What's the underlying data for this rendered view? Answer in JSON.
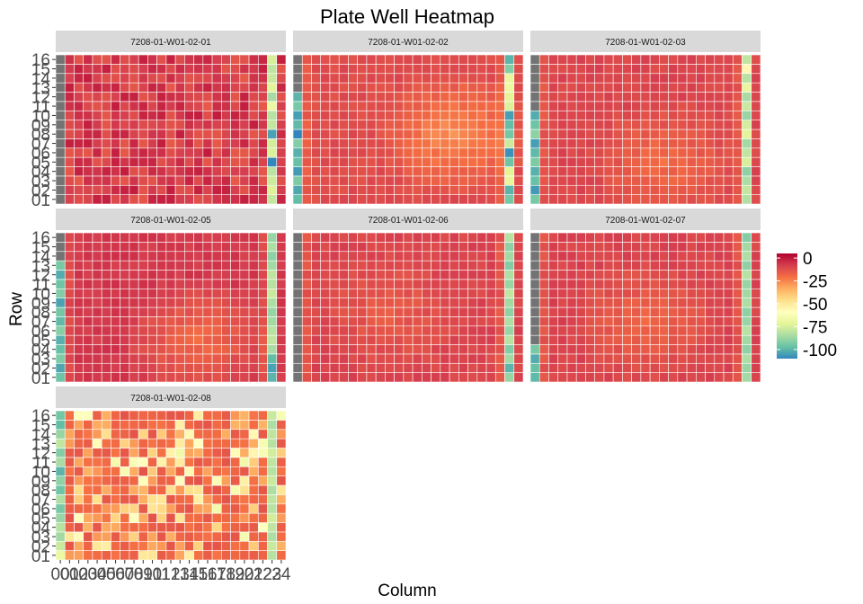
{
  "chart_data": {
    "type": "heatmap",
    "title": "Plate Well Heatmap",
    "xlabel": "Column",
    "ylabel": "Row",
    "x_tick_labels": [
      "00",
      "01",
      "02",
      "03",
      "04",
      "05",
      "06",
      "07",
      "08",
      "09",
      "10",
      "11",
      "12",
      "13",
      "14",
      "15",
      "16",
      "17",
      "18",
      "19",
      "20",
      "21",
      "22",
      "23",
      "24"
    ],
    "y_tick_labels": [
      "16",
      "15",
      "14",
      "13",
      "12",
      "11",
      "10",
      "09",
      "08",
      "07",
      "06",
      "05",
      "04",
      "03",
      "02",
      "01"
    ],
    "columns": [
      0,
      1,
      2,
      3,
      4,
      5,
      6,
      7,
      8,
      9,
      10,
      11,
      12,
      13,
      14,
      15,
      16,
      17,
      18,
      19,
      20,
      21,
      22,
      23,
      24
    ],
    "rows": [
      1,
      2,
      3,
      4,
      5,
      6,
      7,
      8,
      9,
      10,
      11,
      12,
      13,
      14,
      15,
      16
    ],
    "color_scale": {
      "name": "Spectral",
      "range": [
        -110,
        5
      ],
      "legend_ticks": [
        "0",
        "-25",
        "-50",
        "-75",
        "-100"
      ],
      "legend_values": [
        0,
        -25,
        -50,
        -75,
        -100
      ],
      "stops": [
        "#3288bd",
        "#66c2a5",
        "#abdda4",
        "#e6f598",
        "#ffffbf",
        "#fee08b",
        "#fdae61",
        "#f46d43",
        "#d53e4f",
        "#b2002e"
      ],
      "missing_color": "#737373"
    },
    "legend_placement": "right",
    "facet_layout": "3 columns x 3 rows, 7 panels",
    "panels": [
      {
        "label": "7208-01-W01-02-01",
        "col0": [
          -105,
          -92,
          -100,
          -85,
          -98,
          -110,
          -90,
          -88,
          -102,
          -95,
          -108,
          -87,
          -99,
          -93,
          -104,
          -91
        ],
        "col23": [
          -75,
          -80,
          -78,
          -72,
          -85,
          -68,
          -82,
          -79,
          -104,
          -76,
          -74,
          -110,
          -81,
          -77,
          -73,
          -79
        ],
        "grey_rows": [
          16,
          15,
          14,
          13,
          12,
          11,
          10,
          9,
          8,
          7,
          6,
          5,
          4,
          3,
          2,
          1
        ],
        "base": -8,
        "amp": 7,
        "center": [
          6,
          8
        ],
        "pattern": "noisy"
      },
      {
        "label": "7208-01-W01-02-02",
        "col0": [
          -102,
          -96,
          -108,
          -90,
          -100,
          -94,
          -105,
          -99,
          -110,
          -92,
          -101,
          -97,
          -106,
          -93,
          -103,
          -98
        ],
        "col23": [
          -100,
          -92,
          -70,
          -68,
          -72,
          -74,
          -105,
          -98,
          -95,
          -78,
          -108,
          -96,
          -72,
          -70,
          -100,
          -94
        ],
        "grey_rows": [
          16,
          15,
          14,
          13
        ],
        "base": -18,
        "amp": 16,
        "center": [
          17,
          8
        ],
        "pattern": "smooth"
      },
      {
        "label": "7208-01-W01-02-03",
        "col0": [
          -104,
          -98,
          -92,
          -100,
          -95,
          -108,
          -102,
          -96,
          -90,
          -105,
          -99,
          -93,
          -101,
          -97,
          -106,
          -94
        ],
        "col23": [
          -80,
          -55,
          -82,
          -70,
          -85,
          -78,
          -88,
          -76,
          -72,
          -86,
          -80,
          -75,
          -90,
          -84,
          -79,
          -83
        ],
        "grey_rows": [
          16,
          15,
          14,
          13,
          12,
          11
        ],
        "base": -14,
        "amp": 10,
        "center": [
          14,
          5
        ],
        "pattern": "smooth"
      },
      {
        "label": "7208-01-W01-02-05",
        "col0": [
          -100,
          -90,
          -98,
          -94,
          -102,
          -96,
          -92,
          -104,
          -95,
          -99,
          -91,
          -101,
          -97,
          -93,
          -103,
          -96
        ],
        "col23": [
          -88,
          -84,
          -90,
          -86,
          -80,
          -82,
          -78,
          -84,
          -88,
          -86,
          -82,
          -80,
          -85,
          -98,
          -104,
          -100
        ],
        "grey_rows": [
          16,
          15,
          14
        ],
        "base": -12,
        "amp": 13,
        "center": [
          15,
          5
        ],
        "pattern": "smooth"
      },
      {
        "label": "7208-01-W01-02-06",
        "col0": [
          -105,
          -100,
          -96,
          -102,
          -98,
          -94,
          -101,
          -97,
          -103,
          -99,
          -95,
          -100,
          -104,
          -98,
          -96,
          -102
        ],
        "col23": [
          -82,
          -90,
          -86,
          -92,
          -84,
          -88,
          -80,
          -86,
          -90,
          -84,
          -88,
          -82,
          -92,
          -86,
          -100,
          -88
        ],
        "grey_rows": [
          16,
          15,
          14,
          13,
          12,
          11,
          10,
          9,
          8,
          7,
          6,
          5,
          4,
          3,
          2,
          1
        ],
        "base": -12,
        "amp": 6,
        "center": [
          10,
          8
        ],
        "pattern": "smooth"
      },
      {
        "label": "7208-01-W01-02-07",
        "col0": [
          -104,
          -98,
          -100,
          -95,
          -102,
          -97,
          -99,
          -101,
          -96,
          -103,
          -98,
          -100,
          -94,
          -102,
          -97,
          -99
        ],
        "col23": [
          -92,
          -86,
          -84,
          -90,
          -82,
          -88,
          -86,
          -84,
          -90,
          -88,
          -82,
          -86,
          -90,
          -84,
          -88,
          -86
        ],
        "grey_rows": [
          16,
          15,
          14,
          13,
          12,
          11,
          10,
          9,
          8,
          7,
          6,
          5
        ],
        "base": -13,
        "amp": 9,
        "center": [
          12,
          7
        ],
        "pattern": "smooth"
      },
      {
        "label": "7208-01-W01-02-08",
        "col0": [
          -95,
          -98,
          -88,
          -80,
          -92,
          -85,
          -100,
          -90,
          -96,
          -84,
          -94,
          -88,
          -82,
          -86,
          -78,
          -68
        ],
        "col23": [
          -78,
          -84,
          -80,
          -82,
          -76,
          -80,
          -82,
          -78,
          -84,
          -80,
          -82,
          -76,
          -80,
          -84,
          -78,
          -82
        ],
        "grey_rows": [],
        "base": -15,
        "amp": 30,
        "center": [
          10,
          8
        ],
        "pattern": "speckled"
      }
    ]
  }
}
